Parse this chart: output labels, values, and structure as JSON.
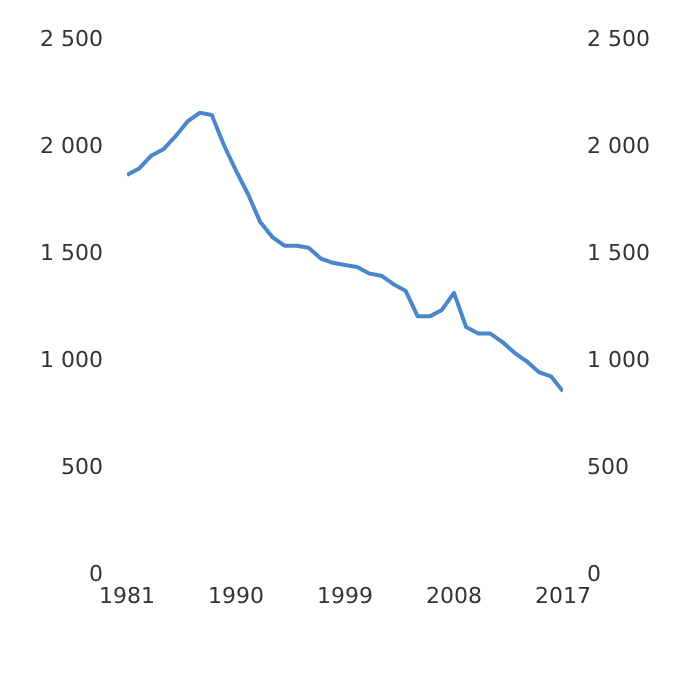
{
  "chart_data": {
    "type": "line",
    "x": [
      1981,
      1982,
      1983,
      1984,
      1985,
      1986,
      1987,
      1988,
      1989,
      1990,
      1991,
      1992,
      1993,
      1994,
      1995,
      1996,
      1997,
      1998,
      1999,
      2000,
      2001,
      2002,
      2003,
      2004,
      2005,
      2006,
      2007,
      2008,
      2009,
      2010,
      2011,
      2012,
      2013,
      2014,
      2015,
      2016,
      2017
    ],
    "series": [
      {
        "color": "#4a86c8",
        "values": [
          1870,
          1900,
          1960,
          1990,
          2050,
          2120,
          2160,
          2150,
          2010,
          1890,
          1780,
          1650,
          1580,
          1540,
          1540,
          1530,
          1480,
          1460,
          1450,
          1440,
          1410,
          1400,
          1360,
          1330,
          1210,
          1210,
          1240,
          1320,
          1160,
          1130,
          1130,
          1090,
          1040,
          1000,
          950,
          930,
          860
        ]
      }
    ],
    "xlim": [
      1981,
      2017
    ],
    "xticks": [
      1981,
      1990,
      1999,
      2008,
      2017
    ],
    "ylim": [
      0,
      2500
    ],
    "yticks": [
      {
        "value": 0,
        "label": "0"
      },
      {
        "value": 500,
        "label": "500"
      },
      {
        "value": 1000,
        "label": "1 000"
      },
      {
        "value": 1500,
        "label": "1 500"
      },
      {
        "value": 2000,
        "label": "2 000"
      },
      {
        "value": 2500,
        "label": "2 500"
      }
    ],
    "y2lim": [
      0,
      2500
    ],
    "y2ticks": [
      {
        "value": 0,
        "label": "0"
      },
      {
        "value": 500,
        "label": "500"
      },
      {
        "value": 1000,
        "label": "1 000"
      },
      {
        "value": 1500,
        "label": "1 500"
      },
      {
        "value": 2000,
        "label": "2 000"
      },
      {
        "value": 2500,
        "label": "2 500"
      }
    ],
    "grid": false,
    "marker": "none",
    "line_style": "solid"
  }
}
